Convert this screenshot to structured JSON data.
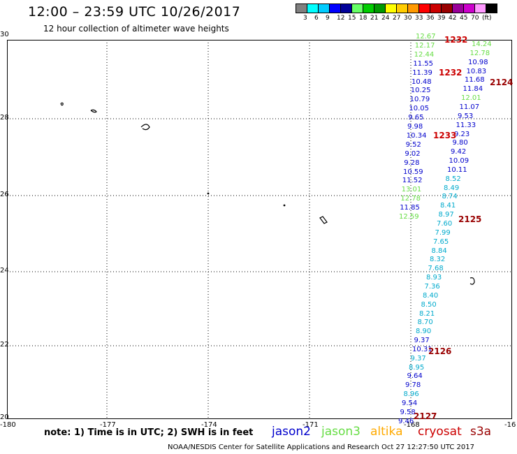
{
  "title": "12:00 – 23:59 UTC 10/26/2017",
  "subtitle": "12 hour collection of altimeter wave heights",
  "legend": {
    "colors": [
      "#808080",
      "#00ffff",
      "#00ccff",
      "#0000ff",
      "#000099",
      "#66ff66",
      "#00cc00",
      "#009900",
      "#ffff00",
      "#ffcc00",
      "#ff9900",
      "#ff0000",
      "#cc0000",
      "#990000",
      "#990099",
      "#cc00cc",
      "#ff99ff",
      "#000000"
    ],
    "labels": [
      "3",
      "6",
      "9",
      "12",
      "15",
      "18",
      "21",
      "24",
      "27",
      "30",
      "33",
      "36",
      "39",
      "42",
      "45",
      "70",
      "(ft)"
    ]
  },
  "axes": {
    "x_labels": [
      "-180",
      "-177",
      "-174",
      "-171",
      "-168",
      "-16"
    ],
    "y_labels": [
      "30",
      "28",
      "26",
      "24",
      "22",
      "20"
    ]
  },
  "series_colors": {
    "jason2": "#0000cc",
    "jason3": "#66dd44",
    "altika": "#ffaa00",
    "cryosat": "#cc0000",
    "s3a": "#990000",
    "cyan": "#00aacc"
  },
  "tracks": {
    "t1": [
      {
        "v": "12.67",
        "c": "jason3"
      },
      {
        "v": "12.17",
        "c": "jason3"
      },
      {
        "v": "12.44",
        "c": "jason3"
      },
      {
        "v": "11.55",
        "c": "jason2"
      },
      {
        "v": "11.39",
        "c": "jason2"
      },
      {
        "v": "10.48",
        "c": "jason2"
      },
      {
        "v": "10.25",
        "c": "jason2"
      },
      {
        "v": "10.79",
        "c": "jason2"
      },
      {
        "v": "10.05",
        "c": "jason2"
      },
      {
        "v": "9.65",
        "c": "jason2"
      },
      {
        "v": "9.98",
        "c": "jason2"
      },
      {
        "v": "10.34",
        "c": "jason2"
      },
      {
        "v": "9.52",
        "c": "jason2"
      },
      {
        "v": "9.02",
        "c": "jason2"
      },
      {
        "v": "9.28",
        "c": "jason2"
      },
      {
        "v": "10.59",
        "c": "jason2"
      },
      {
        "v": "11.52",
        "c": "jason2"
      },
      {
        "v": "13.01",
        "c": "jason3"
      },
      {
        "v": "12.78",
        "c": "jason3"
      },
      {
        "v": "11.85",
        "c": "jason2"
      },
      {
        "v": "12.59",
        "c": "jason3"
      }
    ],
    "t2": [
      {
        "v": "14.24",
        "c": "jason3"
      },
      {
        "v": "12.78",
        "c": "jason3"
      },
      {
        "v": "10.98",
        "c": "jason2"
      },
      {
        "v": "10.83",
        "c": "jason2"
      },
      {
        "v": "11.68",
        "c": "jason2"
      },
      {
        "v": "11.84",
        "c": "jason2"
      },
      {
        "v": "12.01",
        "c": "jason3"
      },
      {
        "v": "11.07",
        "c": "jason2"
      },
      {
        "v": "9.53",
        "c": "jason2"
      },
      {
        "v": "11.33",
        "c": "jason2"
      },
      {
        "v": "9.23",
        "c": "jason2"
      },
      {
        "v": "9.80",
        "c": "jason2"
      },
      {
        "v": "9.42",
        "c": "jason2"
      },
      {
        "v": "10.09",
        "c": "jason2"
      },
      {
        "v": "10.11",
        "c": "jason2"
      },
      {
        "v": "8.52",
        "c": "cyan"
      },
      {
        "v": "8.49",
        "c": "cyan"
      },
      {
        "v": "8.74",
        "c": "cyan"
      },
      {
        "v": "8.41",
        "c": "cyan"
      },
      {
        "v": "8.97",
        "c": "cyan"
      },
      {
        "v": "7.60",
        "c": "cyan"
      },
      {
        "v": "7.99",
        "c": "cyan"
      },
      {
        "v": "7.65",
        "c": "cyan"
      },
      {
        "v": "8.84",
        "c": "cyan"
      },
      {
        "v": "8.32",
        "c": "cyan"
      },
      {
        "v": "7.68",
        "c": "cyan"
      },
      {
        "v": "8.93",
        "c": "cyan"
      },
      {
        "v": "7.36",
        "c": "cyan"
      },
      {
        "v": "8.40",
        "c": "cyan"
      },
      {
        "v": "8.50",
        "c": "cyan"
      },
      {
        "v": "8.21",
        "c": "cyan"
      },
      {
        "v": "8.70",
        "c": "cyan"
      },
      {
        "v": "8.90",
        "c": "cyan"
      },
      {
        "v": "9.37",
        "c": "jason2"
      },
      {
        "v": "10.31",
        "c": "jason2"
      },
      {
        "v": "9.37",
        "c": "cyan"
      },
      {
        "v": "8.95",
        "c": "cyan"
      },
      {
        "v": "9.64",
        "c": "jason2"
      },
      {
        "v": "9.78",
        "c": "jason2"
      },
      {
        "v": "8.96",
        "c": "cyan"
      },
      {
        "v": "9.54",
        "c": "jason2"
      },
      {
        "v": "9.58",
        "c": "jason2"
      },
      {
        "v": "9.46",
        "c": "jason2"
      }
    ]
  },
  "time_labels": [
    {
      "text": "1232",
      "c": "cryosat"
    },
    {
      "text": "1232",
      "c": "cryosat"
    },
    {
      "text": "2124",
      "c": "s3a"
    },
    {
      "text": "1233",
      "c": "cryosat"
    },
    {
      "text": "2125",
      "c": "s3a"
    },
    {
      "text": "2126",
      "c": "s3a"
    },
    {
      "text": "2127",
      "c": "s3a"
    }
  ],
  "note": "note: 1) Time is in UTC; 2) SWH is in feet",
  "satellites": [
    "jason2",
    "jason3",
    "altika",
    "cryosat",
    "s3a"
  ],
  "credit": "NOAA/NESDIS Center for Satellite Applications and Research    Oct 27 12:27:50 UTC 2017"
}
